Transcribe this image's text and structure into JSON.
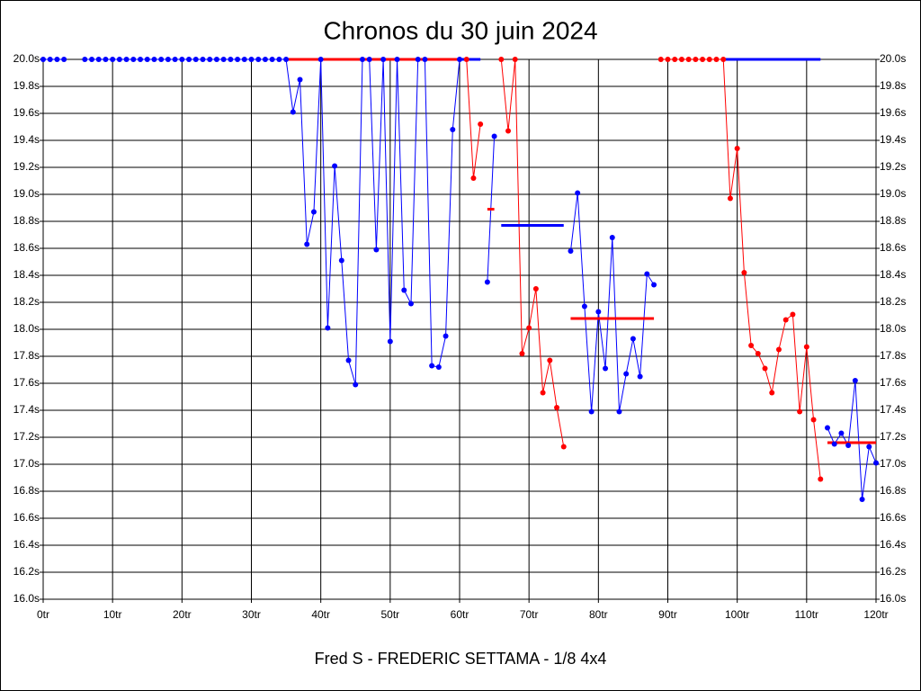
{
  "chart_data": {
    "type": "line",
    "title": "Chronos du 30 juin 2024",
    "footer": "Fred S - FREDERIC SETTAMA - 1/8 4x4",
    "x": [
      0,
      1,
      2,
      3,
      4,
      5,
      6,
      7,
      8,
      9,
      10,
      11,
      12,
      13,
      14,
      15,
      16,
      17,
      18,
      19,
      20,
      21,
      22,
      23,
      24,
      25,
      26,
      27,
      28,
      29,
      30,
      31,
      32,
      33,
      34,
      35,
      36,
      37,
      38,
      39,
      40,
      41,
      42,
      43,
      44,
      45,
      46,
      47,
      48,
      49,
      50,
      51,
      52,
      53,
      54,
      55,
      56,
      57,
      58,
      59,
      60,
      61,
      62,
      63,
      64,
      65,
      66,
      67,
      68,
      69,
      70,
      71,
      72,
      73,
      74,
      75,
      76,
      77,
      78,
      79,
      80,
      81,
      82,
      83,
      84,
      85,
      86,
      87,
      88,
      89,
      90,
      91,
      92,
      93,
      94,
      95,
      96,
      97,
      98,
      99,
      100,
      101,
      102,
      103,
      104,
      105,
      106,
      107,
      108,
      109,
      110,
      111,
      112,
      113,
      114,
      115,
      116,
      117,
      118,
      119,
      120
    ],
    "series": [
      {
        "color": "#0000ff",
        "values": [
          20,
          20,
          20,
          20,
          null,
          null,
          20,
          20,
          20,
          20,
          20,
          20,
          20,
          20,
          20,
          20,
          20,
          20,
          20,
          20,
          20,
          20,
          20,
          20,
          20,
          20,
          20,
          20,
          20,
          20,
          20,
          20,
          20,
          20,
          20,
          20,
          19.61,
          19.85,
          18.63,
          18.87,
          20,
          18.01,
          19.21,
          18.51,
          17.77,
          17.59,
          20,
          20,
          18.59,
          20,
          17.91,
          20,
          18.29,
          18.19,
          20,
          20,
          17.73,
          17.72,
          17.95,
          19.48,
          20,
          null,
          null,
          null,
          18.35,
          19.43,
          null,
          null,
          null,
          null,
          null,
          null,
          null,
          null,
          null,
          null,
          18.58,
          19.01,
          18.17,
          17.39,
          18.13,
          17.71,
          18.68,
          17.39,
          17.67,
          17.93,
          17.65,
          18.41,
          18.33,
          null,
          null,
          null,
          null,
          null,
          null,
          null,
          null,
          null,
          null,
          null,
          null,
          null,
          null,
          null,
          null,
          null,
          null,
          null,
          null,
          null,
          null,
          null,
          null,
          17.27,
          17.15,
          17.23,
          17.14,
          17.62,
          16.74,
          17.13,
          17.01
        ]
      },
      {
        "color": "#ff0000",
        "values": [
          null,
          null,
          null,
          null,
          null,
          null,
          null,
          null,
          null,
          null,
          null,
          null,
          null,
          null,
          null,
          null,
          null,
          null,
          null,
          null,
          null,
          null,
          null,
          null,
          null,
          null,
          null,
          null,
          null,
          null,
          null,
          null,
          null,
          null,
          null,
          null,
          null,
          null,
          null,
          null,
          null,
          null,
          null,
          null,
          null,
          null,
          null,
          null,
          null,
          null,
          null,
          null,
          null,
          null,
          null,
          null,
          null,
          null,
          null,
          null,
          null,
          20,
          19.12,
          19.52,
          null,
          null,
          20,
          19.47,
          20,
          17.82,
          18.01,
          18.3,
          17.53,
          17.77,
          17.42,
          17.13,
          null,
          null,
          null,
          null,
          null,
          null,
          null,
          null,
          null,
          null,
          null,
          null,
          null,
          20,
          20,
          20,
          20,
          20,
          20,
          20,
          20,
          20,
          20,
          18.97,
          19.34,
          18.42,
          17.88,
          17.82,
          17.71,
          17.53,
          17.85,
          18.07,
          18.11,
          17.39,
          17.87,
          17.33,
          16.89,
          null,
          null,
          null,
          null,
          null,
          null,
          null,
          null
        ]
      }
    ],
    "averages": [
      {
        "color": "#ff0000",
        "x": [
          35,
          60
        ],
        "value": 20
      },
      {
        "color": "#0000ff",
        "x": [
          60,
          63
        ],
        "value": 20
      },
      {
        "color": "#ff0000",
        "x": [
          64,
          65
        ],
        "value": 18.89
      },
      {
        "color": "#0000ff",
        "x": [
          66,
          75
        ],
        "value": 18.77
      },
      {
        "color": "#ff0000",
        "x": [
          76,
          88
        ],
        "value": 18.08
      },
      {
        "color": "#0000ff",
        "x": [
          98,
          112
        ],
        "value": 20
      },
      {
        "color": "#ff0000",
        "x": [
          113,
          120
        ],
        "value": 17.16
      }
    ],
    "xlim": [
      0,
      120
    ],
    "xticks": [
      {
        "value": 0,
        "label": "0tr"
      },
      {
        "value": 10,
        "label": "10tr"
      },
      {
        "value": 20,
        "label": "20tr"
      },
      {
        "value": 30,
        "label": "30tr"
      },
      {
        "value": 40,
        "label": "40tr"
      },
      {
        "value": 50,
        "label": "50tr"
      },
      {
        "value": 60,
        "label": "60tr"
      },
      {
        "value": 70,
        "label": "70tr"
      },
      {
        "value": 80,
        "label": "80tr"
      },
      {
        "value": 90,
        "label": "90tr"
      },
      {
        "value": 100,
        "label": "100tr"
      },
      {
        "value": 110,
        "label": "110tr"
      },
      {
        "value": 120,
        "label": "120tr"
      }
    ],
    "ylim": [
      16,
      20
    ],
    "yticks": [
      {
        "value": 16,
        "label": "16.0s"
      },
      {
        "value": 16.2,
        "label": "16.2s"
      },
      {
        "value": 16.4,
        "label": "16.4s"
      },
      {
        "value": 16.6,
        "label": "16.6s"
      },
      {
        "value": 16.8,
        "label": "16.8s"
      },
      {
        "value": 17,
        "label": "17.0s"
      },
      {
        "value": 17.2,
        "label": "17.2s"
      },
      {
        "value": 17.4,
        "label": "17.4s"
      },
      {
        "value": 17.6,
        "label": "17.6s"
      },
      {
        "value": 17.8,
        "label": "17.8s"
      },
      {
        "value": 18,
        "label": "18.0s"
      },
      {
        "value": 18.2,
        "label": "18.2s"
      },
      {
        "value": 18.4,
        "label": "18.4s"
      },
      {
        "value": 18.6,
        "label": "18.6s"
      },
      {
        "value": 18.8,
        "label": "18.8s"
      },
      {
        "value": 19,
        "label": "19.0s"
      },
      {
        "value": 19.2,
        "label": "19.2s"
      },
      {
        "value": 19.4,
        "label": "19.4s"
      },
      {
        "value": 19.6,
        "label": "19.6s"
      },
      {
        "value": 19.8,
        "label": "19.8s"
      },
      {
        "value": 20,
        "label": "20.0s"
      }
    ],
    "grid": true
  }
}
